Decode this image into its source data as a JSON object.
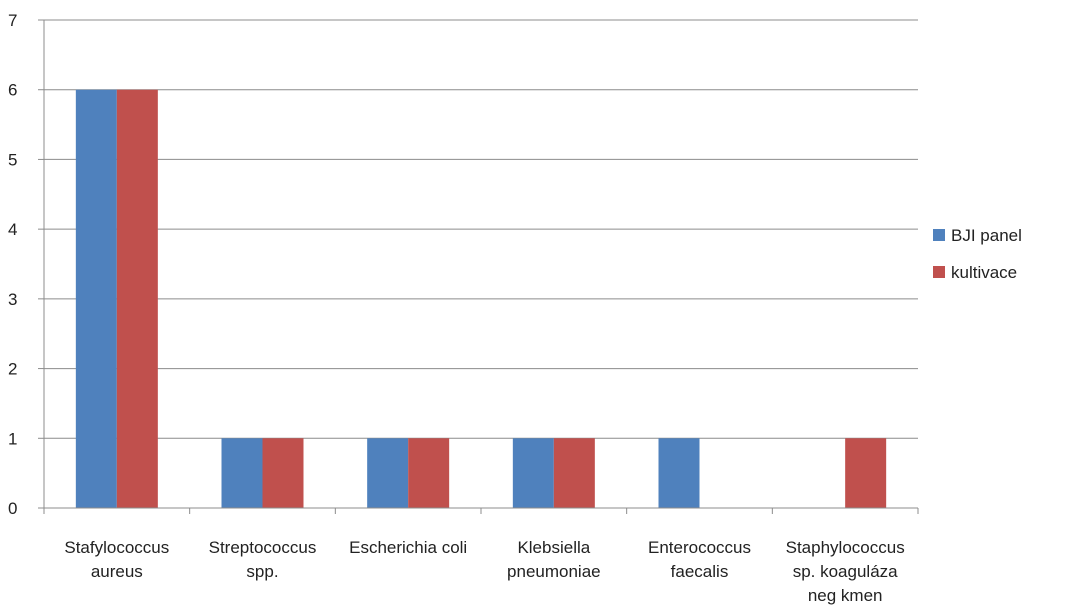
{
  "chart_data": {
    "type": "bar",
    "categories": [
      [
        "Stafylococcus",
        "aureus"
      ],
      [
        "Streptococcus",
        "spp."
      ],
      [
        "Escherichia coli"
      ],
      [
        "Klebsiella",
        "pneumoniae"
      ],
      [
        "Enterococcus",
        "faecalis"
      ],
      [
        "Staphylococcus",
        "sp. koaguláza",
        "neg kmen"
      ]
    ],
    "series": [
      {
        "name": "BJI panel",
        "color": "#4F81BD",
        "values": [
          6,
          1,
          1,
          1,
          1,
          0
        ]
      },
      {
        "name": "kultivace",
        "color": "#C0504D",
        "values": [
          6,
          1,
          1,
          1,
          0,
          1
        ]
      }
    ],
    "yticks": [
      0,
      1,
      2,
      3,
      4,
      5,
      6,
      7
    ],
    "ylim": [
      0,
      7
    ],
    "grid": true,
    "legend_position": "right"
  }
}
